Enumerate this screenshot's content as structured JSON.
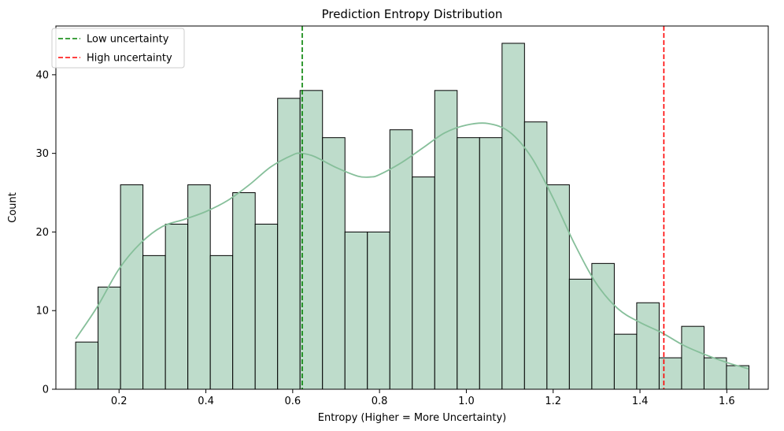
{
  "chart_data": {
    "type": "histogram",
    "title": "Prediction Entropy Distribution",
    "xlabel": "Entropy (Higher = More Uncertainty)",
    "ylabel": "Count",
    "xlim": [
      0.0545,
      1.6955
    ],
    "ylim": [
      0,
      46.2
    ],
    "xticks": [
      0.2,
      0.4,
      0.6,
      0.8,
      1.0,
      1.2,
      1.4,
      1.6
    ],
    "xtick_labels": [
      "0.2",
      "0.4",
      "0.6",
      "0.8",
      "1.0",
      "1.2",
      "1.4",
      "1.6"
    ],
    "yticks": [
      0,
      10,
      20,
      30,
      40
    ],
    "ytick_labels": [
      "0",
      "10",
      "20",
      "30",
      "40"
    ],
    "bins": {
      "start": 0.1,
      "width": 0.0517,
      "counts": [
        6,
        13,
        26,
        17,
        21,
        26,
        17,
        25,
        21,
        37,
        38,
        32,
        20,
        20,
        33,
        27,
        38,
        32,
        32,
        44,
        34,
        26,
        14,
        16,
        7,
        11,
        4,
        8,
        4,
        3
      ]
    },
    "kde": {
      "x": [
        0.1,
        0.15,
        0.2,
        0.25,
        0.3,
        0.35,
        0.4,
        0.45,
        0.5,
        0.55,
        0.6,
        0.62,
        0.65,
        0.7,
        0.75,
        0.78,
        0.8,
        0.85,
        0.9,
        0.95,
        1.0,
        1.05,
        1.1,
        1.15,
        1.2,
        1.25,
        1.3,
        1.35,
        1.4,
        1.45,
        1.5,
        1.55,
        1.6,
        1.65
      ],
      "y": [
        6.4,
        10.5,
        15.3,
        18.6,
        20.7,
        21.6,
        22.6,
        24.0,
        26.0,
        28.3,
        29.8,
        30.0,
        29.6,
        28.2,
        27.1,
        27.0,
        27.3,
        28.8,
        30.7,
        32.6,
        33.6,
        33.8,
        32.7,
        29.5,
        24.3,
        18.4,
        13.4,
        10.2,
        8.5,
        7.2,
        5.6,
        4.4,
        3.4,
        2.6
      ]
    },
    "vlines": [
      {
        "x": 0.622,
        "color": "#008000",
        "label": "Low uncertainty"
      },
      {
        "x": 1.455,
        "color": "#ff0000",
        "label": "High uncertainty"
      }
    ],
    "bar_color": "#bedccb",
    "bar_edge": "#000000",
    "kde_color": "#86bf9a",
    "legend_position": "upper-left",
    "grid": false
  }
}
